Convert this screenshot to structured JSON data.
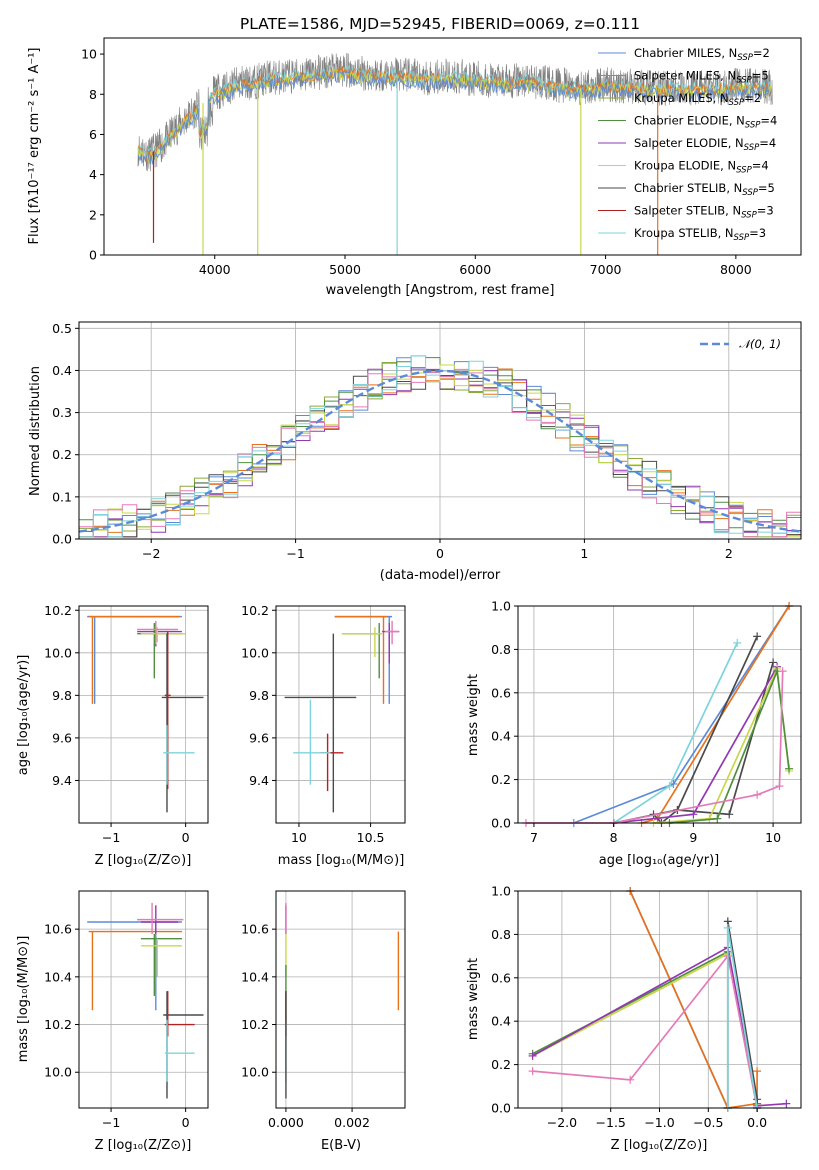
{
  "colors": {
    "Chabrier MILES": "#5b8bd8",
    "Salpeter MILES": "#e8711c",
    "Kroupa MILES": "#8aab3a",
    "Chabrier ELODIE": "#4f8f3f",
    "Salpeter ELODIE": "#9238b0",
    "Kroupa ELODIE": "#c8d84a",
    "Chabrier STELIB": "#4a4a4a",
    "Salpeter STELIB": "#b22222",
    "Kroupa STELIB": "#7ed3dc",
    "pink": "#e57ab8",
    "gaussian": "#5b8bd8"
  },
  "chart_data": [
    {
      "id": "spectrum",
      "type": "line",
      "title": "PLATE=1586, MJD=52945, FIBERID=0069, z=0.111",
      "xlabel": "wavelength [Angstrom, rest frame]",
      "ylabel": "Flux [fλ10⁻¹⁷ erg cm⁻² s⁻¹ A⁻¹]",
      "xlim": [
        3150,
        8500
      ],
      "ylim": [
        0,
        10.8
      ],
      "xticks": [
        4000,
        5000,
        6000,
        7000,
        8000
      ],
      "yticks": [
        0,
        2,
        4,
        6,
        8,
        10
      ],
      "legend_position": "upper right",
      "legend": [
        "Chabrier MILES, N_SSP=2",
        "Salpeter MILES, N_SSP=5",
        "Kroupa MILES, N_SSP=2",
        "Chabrier ELODIE, N_SSP=4",
        "Salpeter ELODIE, N_SSP=4",
        "Kroupa ELODIE, N_SSP=4",
        "Chabrier STELIB, N_SSP=5",
        "Salpeter STELIB, N_SSP=3",
        "Kroupa STELIB, N_SSP=3"
      ],
      "continuum": {
        "x": [
          3410,
          3500,
          3600,
          3700,
          3800,
          3900,
          4000,
          4100,
          4200,
          4300,
          4400,
          4600,
          4800,
          5000,
          5200,
          5400,
          5600,
          5800,
          6000,
          6200,
          6400,
          6600,
          6800,
          7000,
          7200,
          7400,
          7600,
          7800,
          8000,
          8200,
          8280
        ],
        "y": [
          5.3,
          5.0,
          5.5,
          6.3,
          6.9,
          7.5,
          8.1,
          8.3,
          8.6,
          8.6,
          8.8,
          8.9,
          9.1,
          9.2,
          9.0,
          9.0,
          8.8,
          8.9,
          8.8,
          8.6,
          8.7,
          8.5,
          8.3,
          8.5,
          8.4,
          8.3,
          8.3,
          8.3,
          8.4,
          8.4,
          8.3
        ]
      },
      "model_dips": [
        {
          "x": 3530,
          "y": 0.6,
          "color": "Salpeter STELIB"
        },
        {
          "x": 3910,
          "y": 0.0,
          "color": "Kroupa ELODIE"
        },
        {
          "x": 4330,
          "y": 0.0,
          "color": "Kroupa ELODIE"
        },
        {
          "x": 5400,
          "y": 0.0,
          "color": "Kroupa STELIB"
        },
        {
          "x": 6810,
          "y": 0.0,
          "color": "Kroupa ELODIE"
        },
        {
          "x": 7400,
          "y": 0.0,
          "color": "Salpeter MILES"
        }
      ]
    },
    {
      "id": "residuals",
      "type": "line",
      "xlabel": "(data-model)/error",
      "ylabel": "Normed distribution",
      "xlim": [
        -2.5,
        2.5
      ],
      "ylim": [
        0,
        0.515
      ],
      "xticks": [
        -2,
        -1,
        0,
        1,
        2
      ],
      "yticks": [
        0.0,
        0.1,
        0.2,
        0.3,
        0.4,
        0.5
      ],
      "legend_position": "upper right",
      "legend": [
        "𝒩(0, 1)"
      ],
      "bin_width": 0.1
    },
    {
      "id": "age-vs-Z",
      "type": "scatter",
      "xlabel": "Z [log₁₀(Z/Z⊙)]",
      "ylabel": "age  [log₁₀(age/yr)]",
      "xlim": [
        -1.43,
        0.3
      ],
      "ylim": [
        9.2,
        10.22
      ],
      "xticks": [
        -1,
        0
      ],
      "yticks": [
        9.4,
        9.6,
        9.8,
        10.0,
        10.2
      ],
      "points": [
        {
          "x": -1.22,
          "y": 10.17,
          "xlo": -1.32,
          "xhi": -0.05,
          "ylo": 9.76,
          "yhi": 10.17,
          "color": "Chabrier MILES"
        },
        {
          "x": -1.25,
          "y": 10.17,
          "xlo": -1.3,
          "xhi": -0.08,
          "ylo": 9.76,
          "yhi": 10.17,
          "color": "Salpeter MILES"
        },
        {
          "x": -0.42,
          "y": 10.09,
          "xlo": -0.65,
          "xhi": -0.05,
          "ylo": 9.88,
          "yhi": 10.14,
          "color": "Chabrier ELODIE"
        },
        {
          "x": -0.4,
          "y": 10.1,
          "xlo": -0.65,
          "xhi": -0.05,
          "ylo": 10.03,
          "yhi": 10.14,
          "color": "Salpeter ELODIE"
        },
        {
          "x": -0.38,
          "y": 10.09,
          "xlo": -0.6,
          "xhi": 0.0,
          "ylo": 10.05,
          "yhi": 10.12,
          "color": "Kroupa ELODIE"
        },
        {
          "x": -0.4,
          "y": 10.11,
          "xlo": -0.65,
          "xhi": -0.1,
          "ylo": 10.04,
          "yhi": 10.15,
          "color": "pink"
        },
        {
          "x": -0.25,
          "y": 9.79,
          "xlo": -0.32,
          "xhi": 0.24,
          "ylo": 9.25,
          "yhi": 10.09,
          "color": "Chabrier STELIB"
        },
        {
          "x": -0.24,
          "y": 9.8,
          "xlo": -0.28,
          "xhi": -0.2,
          "ylo": 9.36,
          "yhi": 10.1,
          "color": "Salpeter STELIB"
        },
        {
          "x": -0.25,
          "y": 9.53,
          "xlo": -0.3,
          "xhi": 0.12,
          "ylo": 9.38,
          "yhi": 9.66,
          "color": "Kroupa STELIB"
        }
      ]
    },
    {
      "id": "age-vs-mass",
      "type": "scatter",
      "xlabel": "mass [log₁₀(M/M⊙)]",
      "xlim": [
        9.84,
        10.74
      ],
      "ylim": [
        9.2,
        10.22
      ],
      "xticks": [
        10.0,
        10.5
      ],
      "yticks": [
        9.4,
        9.6,
        9.8,
        10.0,
        10.2
      ],
      "points": [
        {
          "x": 10.63,
          "y": 10.17,
          "xlo": 10.25,
          "xhi": 10.65,
          "ylo": 9.76,
          "yhi": 10.17,
          "color": "Chabrier MILES"
        },
        {
          "x": 10.59,
          "y": 10.17,
          "xlo": 10.25,
          "xhi": 10.62,
          "ylo": 9.76,
          "yhi": 10.17,
          "color": "Salpeter MILES"
        },
        {
          "x": 10.56,
          "y": 10.09,
          "xlo": 10.3,
          "xhi": 10.58,
          "ylo": 9.88,
          "yhi": 10.14,
          "color": "Chabrier ELODIE"
        },
        {
          "x": 10.63,
          "y": 10.1,
          "xlo": 10.58,
          "xhi": 10.7,
          "ylo": 9.95,
          "yhi": 10.14,
          "color": "Salpeter ELODIE"
        },
        {
          "x": 10.53,
          "y": 10.09,
          "xlo": 10.3,
          "xhi": 10.58,
          "ylo": 9.98,
          "yhi": 10.12,
          "color": "Kroupa ELODIE"
        },
        {
          "x": 10.65,
          "y": 10.1,
          "xlo": 10.6,
          "xhi": 10.7,
          "ylo": 10.04,
          "yhi": 10.15,
          "color": "pink"
        },
        {
          "x": 10.24,
          "y": 9.79,
          "xlo": 9.9,
          "xhi": 10.4,
          "ylo": 9.25,
          "yhi": 10.09,
          "color": "Chabrier STELIB"
        },
        {
          "x": 10.2,
          "y": 9.53,
          "xlo": 10.15,
          "xhi": 10.31,
          "ylo": 9.35,
          "yhi": 9.62,
          "color": "Salpeter STELIB"
        },
        {
          "x": 10.08,
          "y": 9.53,
          "xlo": 9.96,
          "xhi": 10.22,
          "ylo": 9.38,
          "yhi": 9.78,
          "color": "Kroupa STELIB"
        }
      ]
    },
    {
      "id": "weight-vs-age",
      "type": "line",
      "xlabel": "age  [log₁₀(age/yr)]",
      "ylabel": "mass weight",
      "xlim": [
        6.8,
        10.35
      ],
      "ylim": [
        0,
        1.0
      ],
      "xticks": [
        7,
        8,
        9,
        10
      ],
      "yticks": [
        0.0,
        0.2,
        0.4,
        0.6,
        0.8,
        1.0
      ],
      "series": [
        {
          "color": "Chabrier MILES",
          "x": [
            7.5,
            8.75,
            10.2
          ],
          "y": [
            0.0,
            0.18,
            1.0
          ]
        },
        {
          "color": "Salpeter MILES",
          "x": [
            8.35,
            8.55,
            10.2
          ],
          "y": [
            0.0,
            0.02,
            1.0
          ]
        },
        {
          "color": "Kroupa STELIB",
          "x": [
            8.0,
            8.7,
            9.55
          ],
          "y": [
            0.0,
            0.17,
            0.83
          ]
        },
        {
          "color": "Chabrier STELIB",
          "x": [
            8.0,
            8.8,
            9.8
          ],
          "y": [
            0.0,
            0.06,
            0.86
          ]
        },
        {
          "color": "Chabrier STELIB",
          "x": [
            8.5,
            8.6,
            8.8,
            9.45,
            10.0
          ],
          "y": [
            0.04,
            0.0,
            0.06,
            0.04,
            0.74
          ]
        },
        {
          "color": "Salpeter ELODIE",
          "x": [
            8.0,
            9.0,
            10.05
          ],
          "y": [
            0.0,
            0.04,
            0.72
          ]
        },
        {
          "color": "Kroupa ELODIE",
          "x": [
            8.5,
            9.2,
            10.05,
            10.2
          ],
          "y": [
            0.0,
            0.02,
            0.71,
            0.24
          ]
        },
        {
          "color": "Chabrier ELODIE",
          "x": [
            8.7,
            9.3,
            10.05,
            10.2
          ],
          "y": [
            0.0,
            0.02,
            0.7,
            0.25
          ]
        },
        {
          "color": "pink",
          "x": [
            6.9,
            8.0,
            9.8,
            10.08,
            10.12
          ],
          "y": [
            0.0,
            0.0,
            0.13,
            0.17,
            0.7
          ]
        }
      ]
    },
    {
      "id": "mass-vs-Z",
      "type": "scatter",
      "xlabel": "Z [log₁₀(Z/Z⊙)]",
      "ylabel": "mass [log₁₀(M/M⊙)]",
      "xlim": [
        -1.43,
        0.3
      ],
      "ylim": [
        9.85,
        10.76
      ],
      "xticks": [
        -1,
        0
      ],
      "yticks": [
        10.0,
        10.2,
        10.4,
        10.6
      ],
      "points": [
        {
          "x": -0.4,
          "y": 10.63,
          "xlo": -1.32,
          "xhi": -0.05,
          "ylo": 10.26,
          "yhi": 10.63,
          "color": "Chabrier MILES"
        },
        {
          "x": -1.25,
          "y": 10.59,
          "xlo": -1.3,
          "xhi": -0.05,
          "ylo": 10.26,
          "yhi": 10.59,
          "color": "Salpeter MILES"
        },
        {
          "x": -0.42,
          "y": 10.56,
          "xlo": -0.6,
          "xhi": -0.05,
          "ylo": 10.32,
          "yhi": 10.58,
          "color": "Chabrier ELODIE"
        },
        {
          "x": -0.4,
          "y": 10.63,
          "xlo": -0.6,
          "xhi": -0.1,
          "ylo": 10.58,
          "yhi": 10.7,
          "color": "Salpeter ELODIE"
        },
        {
          "x": -0.38,
          "y": 10.53,
          "xlo": -0.6,
          "xhi": -0.05,
          "ylo": 10.4,
          "yhi": 10.56,
          "color": "Kroupa ELODIE"
        },
        {
          "x": -0.45,
          "y": 10.64,
          "xlo": -0.65,
          "xhi": -0.03,
          "ylo": 10.58,
          "yhi": 10.71,
          "color": "pink"
        },
        {
          "x": -0.25,
          "y": 10.24,
          "xlo": -0.3,
          "xhi": 0.24,
          "ylo": 9.89,
          "yhi": 10.34,
          "color": "Chabrier STELIB"
        },
        {
          "x": -0.24,
          "y": 10.2,
          "xlo": -0.28,
          "xhi": 0.12,
          "ylo": 10.15,
          "yhi": 10.34,
          "color": "Salpeter STELIB"
        },
        {
          "x": -0.25,
          "y": 10.08,
          "xlo": -0.28,
          "xhi": 0.12,
          "ylo": 9.96,
          "yhi": 10.22,
          "color": "Kroupa STELIB"
        }
      ]
    },
    {
      "id": "mass-vs-ebv",
      "type": "scatter",
      "xlabel": "E(B-V)",
      "xlim": [
        -0.0003,
        0.0036
      ],
      "ylim": [
        9.85,
        10.76
      ],
      "xticks": [
        0.0,
        0.002
      ],
      "xticklabels": [
        "0.000",
        "0.002"
      ],
      "yticks": [
        10.0,
        10.2,
        10.4,
        10.6
      ],
      "points": [
        {
          "x": 0.0,
          "y": 10.63,
          "ylo": 10.58,
          "yhi": 10.7,
          "color": "Salpeter ELODIE"
        },
        {
          "x": 0.0,
          "y": 10.64,
          "ylo": 10.58,
          "yhi": 10.71,
          "color": "pink"
        },
        {
          "x": 0.0,
          "y": 10.53,
          "ylo": 10.4,
          "yhi": 10.58,
          "color": "Kroupa ELODIE"
        },
        {
          "x": 0.0,
          "y": 10.4,
          "ylo": 10.2,
          "yhi": 10.45,
          "color": "Chabrier ELODIE"
        },
        {
          "x": 0.0,
          "y": 10.2,
          "ylo": 10.15,
          "yhi": 10.34,
          "color": "Salpeter STELIB"
        },
        {
          "x": 0.0,
          "y": 10.08,
          "ylo": 9.96,
          "yhi": 10.22,
          "color": "Kroupa STELIB"
        },
        {
          "x": 0.0,
          "y": 10.24,
          "ylo": 9.89,
          "yhi": 10.34,
          "color": "Chabrier STELIB"
        },
        {
          "x": 0.0034,
          "y": 10.42,
          "ylo": 10.26,
          "yhi": 10.59,
          "color": "Salpeter MILES"
        }
      ]
    },
    {
      "id": "weight-vs-Z",
      "type": "line",
      "xlabel": "Z [log₁₀(Z/Z⊙)]",
      "ylabel": "mass weight",
      "xlim": [
        -2.45,
        0.45
      ],
      "ylim": [
        0,
        1.0
      ],
      "xticks": [
        -2.0,
        -1.5,
        -1.0,
        -0.5,
        0.0
      ],
      "xticklabels": [
        "−2.0",
        "−1.5",
        "−1.0",
        "−0.5",
        "0.0"
      ],
      "yticks": [
        0.0,
        0.2,
        0.4,
        0.6,
        0.8,
        1.0
      ],
      "series": [
        {
          "color": "Chabrier MILES",
          "x": [
            -1.3,
            -0.3
          ],
          "y": [
            1.0,
            0.0
          ]
        },
        {
          "color": "Salpeter MILES",
          "x": [
            -1.3,
            -0.3,
            0.0,
            0.0
          ],
          "y": [
            1.0,
            0.0,
            0.02,
            0.17
          ]
        },
        {
          "color": "Chabrier ELODIE",
          "x": [
            -2.3,
            -0.3,
            0.0,
            0.0
          ],
          "y": [
            0.25,
            0.72,
            0.02,
            0.0
          ]
        },
        {
          "color": "Kroupa ELODIE",
          "x": [
            -2.3,
            -0.3,
            0.0
          ],
          "y": [
            0.24,
            0.71,
            0.0
          ]
        },
        {
          "color": "Salpeter ELODIE",
          "x": [
            -2.3,
            -0.3,
            0.0,
            0.3
          ],
          "y": [
            0.24,
            0.74,
            0.01,
            0.02
          ]
        },
        {
          "color": "pink",
          "x": [
            -2.3,
            -1.3,
            -0.3,
            0.0
          ],
          "y": [
            0.17,
            0.13,
            0.7,
            0.0
          ]
        },
        {
          "color": "Chabrier STELIB",
          "x": [
            -0.3,
            -0.3,
            0.0,
            0.0
          ],
          "y": [
            0.0,
            0.86,
            0.04,
            0.0
          ]
        },
        {
          "color": "Kroupa STELIB",
          "x": [
            -0.3,
            -0.3,
            0.0
          ],
          "y": [
            0.0,
            0.83,
            0.0
          ]
        }
      ]
    }
  ]
}
